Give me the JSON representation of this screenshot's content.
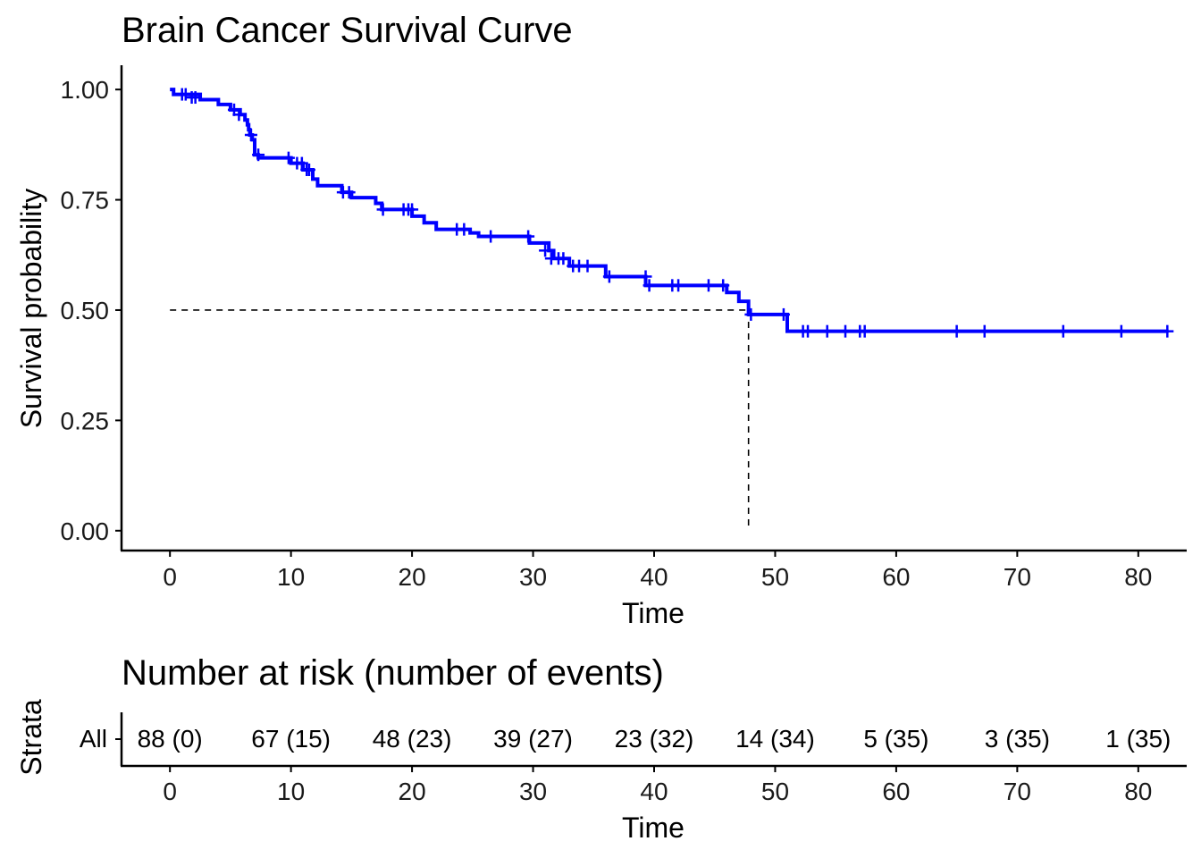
{
  "colors": {
    "curve": "#0000ff",
    "axis": "#000000",
    "strata": "#0000ff"
  },
  "chart_data": [
    {
      "type": "line",
      "subtype": "kaplan-meier-step",
      "title": "Brain Cancer Survival Curve",
      "xlabel": "Time",
      "ylabel": "Survival probability",
      "xlim": [
        -4,
        84
      ],
      "ylim": [
        -0.045,
        1.055
      ],
      "xticks": [
        0,
        10,
        20,
        30,
        40,
        50,
        60,
        70,
        80
      ],
      "xtick_labels": [
        "0",
        "10",
        "20",
        "30",
        "40",
        "50",
        "60",
        "70",
        "80"
      ],
      "yticks": [
        0,
        0.25,
        0.5,
        0.75,
        1.0
      ],
      "ytick_labels": [
        "0.00",
        "0.25",
        "0.50",
        "0.75",
        "1.00"
      ],
      "grid": false,
      "legend": "none",
      "median_survival": {
        "time": 47.8,
        "probability": 0.5
      },
      "series": [
        {
          "color": "#0000ff",
          "steps": [
            [
              0,
              1.0
            ],
            [
              0.3,
              0.989
            ],
            [
              2.5,
              0.977
            ],
            [
              4.0,
              0.966
            ],
            [
              5.0,
              0.954
            ],
            [
              5.8,
              0.943
            ],
            [
              6.2,
              0.931
            ],
            [
              6.4,
              0.92
            ],
            [
              6.5,
              0.909
            ],
            [
              6.6,
              0.897
            ],
            [
              6.8,
              0.886
            ],
            [
              7.0,
              0.852
            ],
            [
              7.3,
              0.845
            ],
            [
              10.0,
              0.833
            ],
            [
              11.0,
              0.818
            ],
            [
              11.8,
              0.797
            ],
            [
              12.2,
              0.782
            ],
            [
              14.2,
              0.767
            ],
            [
              15.0,
              0.755
            ],
            [
              17.0,
              0.742
            ],
            [
              17.5,
              0.728
            ],
            [
              20.0,
              0.713
            ],
            [
              21.0,
              0.698
            ],
            [
              22.0,
              0.683
            ],
            [
              24.8,
              0.675
            ],
            [
              25.5,
              0.667
            ],
            [
              29.7,
              0.652
            ],
            [
              31.3,
              0.635
            ],
            [
              31.7,
              0.617
            ],
            [
              33.0,
              0.6
            ],
            [
              36.0,
              0.576
            ],
            [
              39.3,
              0.556
            ],
            [
              46.0,
              0.54
            ],
            [
              47.0,
              0.52
            ],
            [
              47.8,
              0.49
            ],
            [
              51.0,
              0.452
            ],
            [
              82.5,
              0.452
            ]
          ],
          "censored": [
            [
              1.0,
              0.989
            ],
            [
              1.3,
              0.989
            ],
            [
              1.8,
              0.982
            ],
            [
              2.1,
              0.982
            ],
            [
              5.3,
              0.954
            ],
            [
              5.7,
              0.943
            ],
            [
              6.7,
              0.897
            ],
            [
              7.3,
              0.852
            ],
            [
              9.8,
              0.845
            ],
            [
              10.5,
              0.833
            ],
            [
              10.9,
              0.833
            ],
            [
              11.3,
              0.818
            ],
            [
              11.5,
              0.818
            ],
            [
              14.3,
              0.767
            ],
            [
              14.8,
              0.767
            ],
            [
              17.6,
              0.728
            ],
            [
              19.3,
              0.728
            ],
            [
              19.7,
              0.728
            ],
            [
              20.0,
              0.728
            ],
            [
              23.7,
              0.683
            ],
            [
              24.3,
              0.683
            ],
            [
              26.5,
              0.667
            ],
            [
              29.6,
              0.667
            ],
            [
              31.0,
              0.635
            ],
            [
              31.5,
              0.617
            ],
            [
              32.1,
              0.617
            ],
            [
              32.5,
              0.617
            ],
            [
              33.3,
              0.6
            ],
            [
              33.8,
              0.6
            ],
            [
              34.5,
              0.6
            ],
            [
              36.3,
              0.576
            ],
            [
              39.3,
              0.576
            ],
            [
              39.6,
              0.556
            ],
            [
              41.5,
              0.556
            ],
            [
              42.0,
              0.556
            ],
            [
              44.5,
              0.556
            ],
            [
              45.7,
              0.556
            ],
            [
              48.0,
              0.49
            ],
            [
              50.7,
              0.49
            ],
            [
              52.3,
              0.452
            ],
            [
              52.7,
              0.452
            ],
            [
              54.3,
              0.452
            ],
            [
              55.8,
              0.452
            ],
            [
              57.0,
              0.452
            ],
            [
              57.4,
              0.452
            ],
            [
              65.0,
              0.452
            ],
            [
              67.3,
              0.452
            ],
            [
              73.8,
              0.452
            ],
            [
              78.6,
              0.452
            ],
            [
              82.4,
              0.452
            ]
          ]
        }
      ]
    },
    {
      "type": "table",
      "title": "Number at risk (number of events)",
      "xlabel": "Time",
      "ylabel": "Strata",
      "xlim": [
        -4,
        84
      ],
      "xticks": [
        0,
        10,
        20,
        30,
        40,
        50,
        60,
        70,
        80
      ],
      "xtick_labels": [
        "0",
        "10",
        "20",
        "30",
        "40",
        "50",
        "60",
        "70",
        "80"
      ],
      "strata": [
        {
          "name": "All",
          "color": "#0000ff",
          "times": [
            0,
            10,
            20,
            30,
            40,
            50,
            60,
            70,
            80
          ],
          "labels": [
            "88 (0)",
            "67 (15)",
            "48 (23)",
            "39 (27)",
            "23 (32)",
            "14 (34)",
            "5 (35)",
            "3 (35)",
            "1 (35)"
          ]
        }
      ]
    }
  ]
}
